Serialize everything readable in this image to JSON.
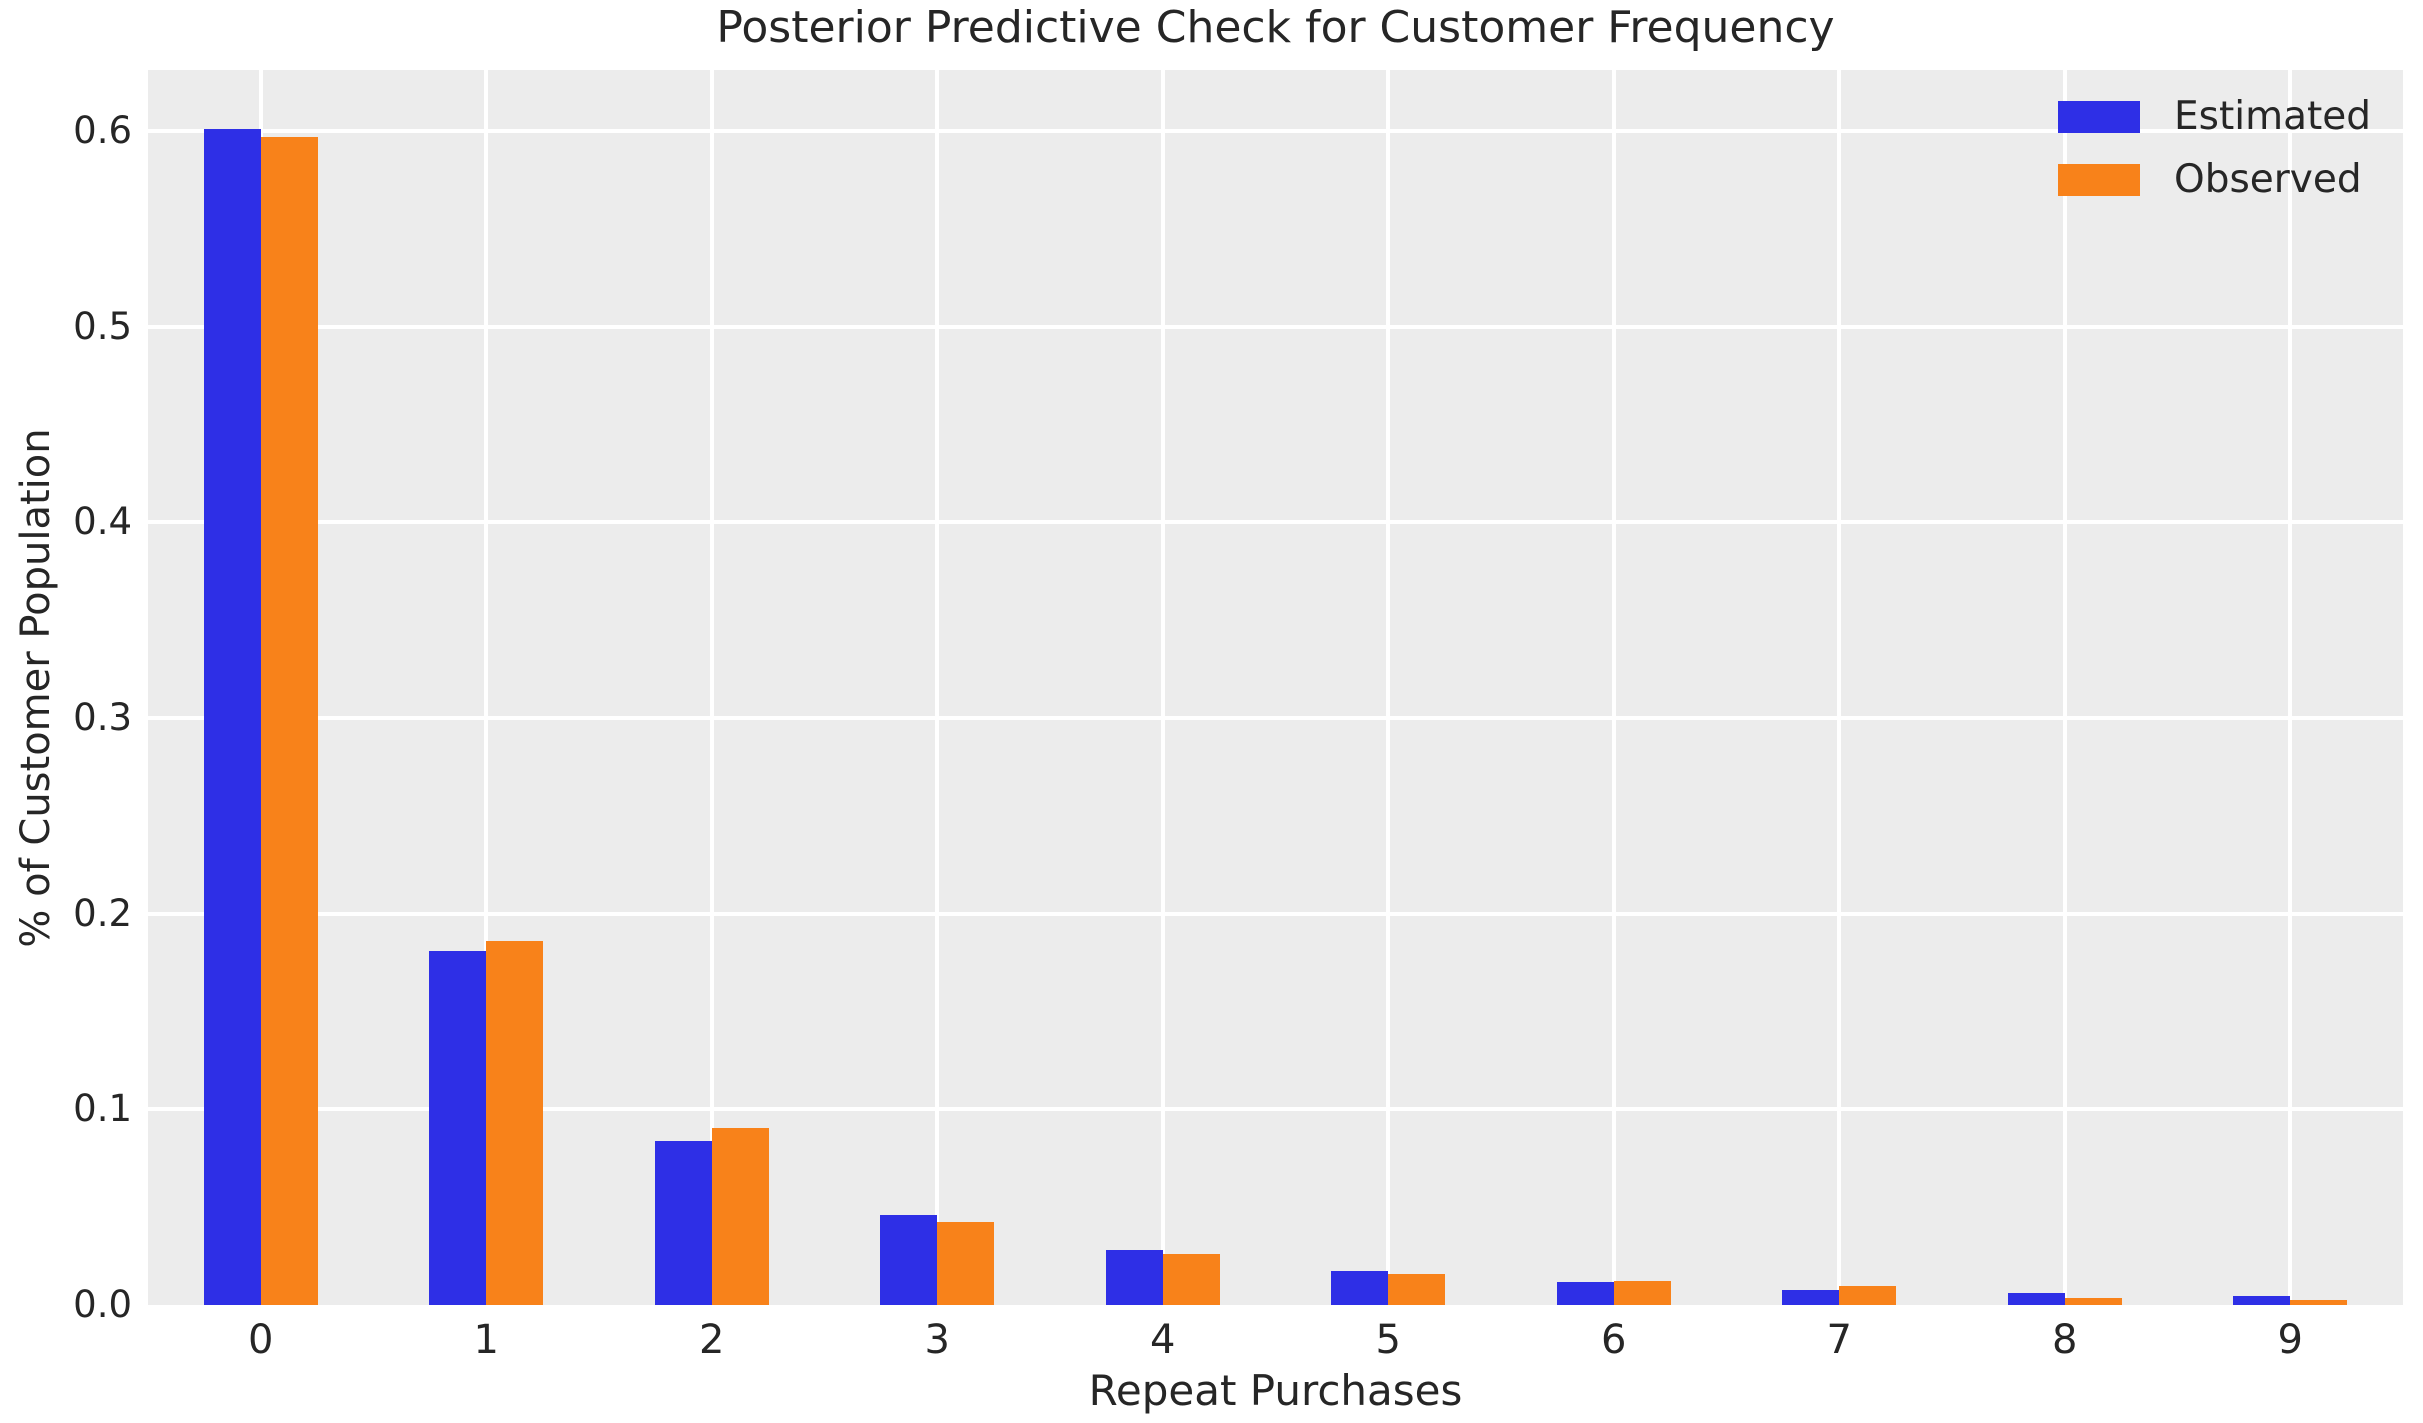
{
  "chart_data": {
    "type": "bar",
    "title": "Posterior Predictive Check for Customer Frequency",
    "xlabel": "Repeat Purchases",
    "ylabel": "% of Customer Population",
    "categories": [
      "0",
      "1",
      "2",
      "3",
      "4",
      "5",
      "6",
      "7",
      "8",
      "9"
    ],
    "series": [
      {
        "name": "Estimated",
        "color": "#2e2fe6",
        "values": [
          0.601,
          0.181,
          0.084,
          0.046,
          0.028,
          0.0174,
          0.0118,
          0.0077,
          0.006,
          0.0048
        ]
      },
      {
        "name": "Observed",
        "color": "#f8821a",
        "values": [
          0.597,
          0.186,
          0.0905,
          0.0424,
          0.0262,
          0.0158,
          0.0123,
          0.0097,
          0.0036,
          0.0027
        ]
      }
    ],
    "ytick_labels": [
      "0.0",
      "0.1",
      "0.2",
      "0.3",
      "0.4",
      "0.5",
      "0.6"
    ],
    "yticks": [
      0.0,
      0.1,
      0.2,
      0.3,
      0.4,
      0.5,
      0.6
    ],
    "ylim": [
      0,
      0.6312
    ],
    "grid": true,
    "legend_position": "upper right",
    "plot_background": "#ececec",
    "grid_color": "#ffffff",
    "text_color": "#262626"
  }
}
